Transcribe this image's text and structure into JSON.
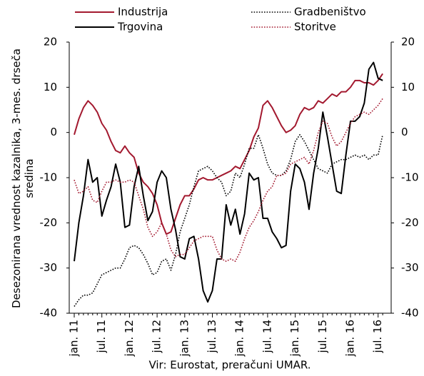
{
  "chart_data": {
    "type": "line",
    "y_label": "Desezonirana vrednost kazalnika, 3-mes. drseča sredina",
    "source": "Vir: Eurostat, preračuni UMAR.",
    "categories": [
      "jan. 11",
      null,
      null,
      null,
      null,
      null,
      "jul. 11",
      null,
      null,
      null,
      null,
      null,
      "jan. 12",
      null,
      null,
      null,
      null,
      null,
      "jul. 12",
      null,
      null,
      null,
      null,
      null,
      "jan. 13",
      null,
      null,
      null,
      null,
      null,
      "jul. 13",
      null,
      null,
      null,
      null,
      null,
      "jan. 14",
      null,
      null,
      null,
      null,
      null,
      "jul. 14",
      null,
      null,
      null,
      null,
      null,
      "jan. 15",
      null,
      null,
      null,
      null,
      null,
      "jul. 15",
      null,
      null,
      null,
      null,
      null,
      "jan. 16",
      null,
      null,
      null,
      null,
      null,
      "jul. 16",
      null
    ],
    "ylim": [
      -40,
      20
    ],
    "yticks": [
      -40,
      -30,
      -20,
      -10,
      0,
      10,
      20
    ],
    "y2lim": [
      -40,
      20
    ],
    "y2ticks": [
      -40,
      -30,
      -20,
      -10,
      0,
      10,
      20
    ],
    "series": [
      {
        "name": "Industrija",
        "color": "#a3192f",
        "style": "solid",
        "values": [
          -0.5,
          3,
          5.5,
          7,
          6,
          4.5,
          2,
          0.5,
          -2,
          -4,
          -4.5,
          -3,
          -4.5,
          -5.5,
          -9,
          -11,
          -12,
          -13.5,
          -16,
          -20,
          -22.5,
          -22,
          -19,
          -16,
          -14,
          -14,
          -12.5,
          -10.5,
          -10,
          -10.5,
          -10.5,
          -10,
          -9.5,
          -9,
          -8.5,
          -7.5,
          -8,
          -6,
          -4,
          -1,
          1,
          6,
          7,
          5.5,
          3.5,
          1.5,
          0,
          0.5,
          1.5,
          4,
          5.5,
          5,
          5.5,
          7,
          6.5,
          7.5,
          8.5,
          8,
          9,
          9,
          10,
          11.5,
          11.5,
          11,
          11,
          10.5,
          11.5,
          13
        ]
      },
      {
        "name": "Trgovina",
        "color": "#000000",
        "style": "solid",
        "values": [
          -28.5,
          -20,
          -14,
          -6,
          -11,
          -10,
          -18.5,
          -15,
          -12,
          -7,
          -11,
          -21,
          -20.5,
          -12,
          -7.5,
          -14,
          -19.5,
          -17.5,
          -11,
          -8.5,
          -10,
          -17,
          -21.5,
          -27.5,
          -28,
          -23.5,
          -23,
          -28,
          -35,
          -37.5,
          -35,
          -28,
          -28,
          -16,
          -20.5,
          -17,
          -22.5,
          -18,
          -9,
          -10.5,
          -10,
          -19,
          -19,
          -22,
          -23.5,
          -25.5,
          -25,
          -13,
          -7,
          -8,
          -11,
          -17,
          -9,
          -3.5,
          4.5,
          -1,
          -7,
          -13,
          -13.5,
          -5,
          2.5,
          2.5,
          3.5,
          6.5,
          14,
          15.5,
          12,
          11.5
        ]
      },
      {
        "name": "Gradbeništvo",
        "color": "#000000",
        "style": "dotted",
        "values": [
          -38.5,
          -37,
          -36,
          -36,
          -35.5,
          -33.5,
          -31.5,
          -31,
          -30.5,
          -30,
          -30,
          -28,
          -25.5,
          -25,
          -25.5,
          -27,
          -29,
          -31.5,
          -31,
          -28.5,
          -28,
          -30.5,
          -27,
          -22,
          -19,
          -16,
          -12,
          -8.5,
          -8,
          -7.5,
          -8.5,
          -10,
          -11,
          -14,
          -13,
          -9,
          -10,
          -7,
          -3.5,
          -3.5,
          -0.5,
          -3.5,
          -7,
          -9,
          -9.5,
          -9.5,
          -8.5,
          -6,
          -2,
          -0.5,
          -2,
          -4,
          -6,
          -8,
          -8.5,
          -9,
          -7,
          -6.5,
          -6,
          -6,
          -5.5,
          -5,
          -5.5,
          -5,
          -6,
          -5,
          -5,
          -0.5
        ]
      },
      {
        "name": "Storitve",
        "color": "#a3192f",
        "style": "dotted",
        "values": [
          -10.5,
          -13.5,
          -13,
          -12,
          -15,
          -15.5,
          -13,
          -11,
          -11,
          -10.5,
          -11,
          -11,
          -10.5,
          -11,
          -14,
          -17,
          -21,
          -23,
          -22,
          -20,
          -22.5,
          -26,
          -27.5,
          -27,
          -27,
          -25.5,
          -24,
          -23.5,
          -23,
          -23,
          -23,
          -26,
          -28,
          -28.5,
          -28,
          -28.5,
          -26.5,
          -23.5,
          -21,
          -19.5,
          -17.5,
          -15,
          -13,
          -12,
          -9.5,
          -9.5,
          -9,
          -7,
          -6.5,
          -6,
          -5.5,
          -7,
          -4,
          0,
          2.5,
          2,
          -1,
          -3,
          -2,
          0,
          2,
          3.5,
          4,
          4.5,
          4,
          5,
          6,
          7.5
        ]
      }
    ]
  }
}
